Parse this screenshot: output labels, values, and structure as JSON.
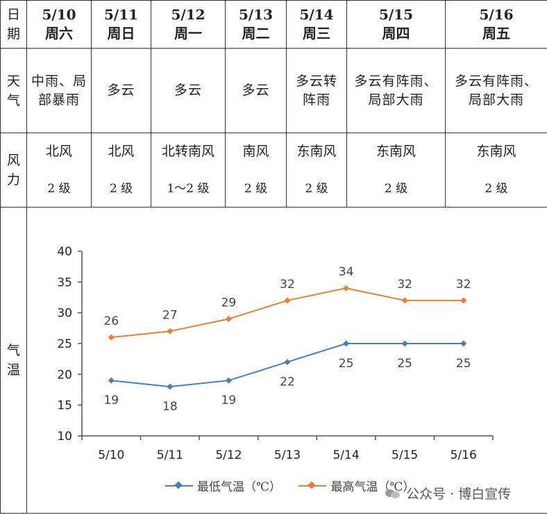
{
  "labels": {
    "date": [
      "日",
      "期"
    ],
    "weather": [
      "天",
      "气"
    ],
    "wind": [
      "风",
      "力"
    ],
    "temp": [
      "气",
      "温"
    ]
  },
  "days": [
    {
      "date": "5/10",
      "week": "周六",
      "weather": "中雨、局部暴雨",
      "wind": "北风",
      "level": "2 级"
    },
    {
      "date": "5/11",
      "week": "周日",
      "weather": "多云",
      "wind": "北风",
      "level": "2 级"
    },
    {
      "date": "5/12",
      "week": "周一",
      "weather": "多云",
      "wind": "北转南风",
      "level": "1～2 级"
    },
    {
      "date": "5/13",
      "week": "周二",
      "weather": "多云",
      "wind": "南风",
      "level": "2 级"
    },
    {
      "date": "5/14",
      "week": "周三",
      "weather": "多云转阵雨",
      "wind": "东南风",
      "level": "2 级"
    },
    {
      "date": "5/15",
      "week": "周四",
      "weather": "多云有阵雨、局部大雨",
      "wind": "东南风",
      "level": "2 级"
    },
    {
      "date": "5/16",
      "week": "周五",
      "weather": "多云有阵雨、局部大雨",
      "wind": "东南风",
      "level": "2 级"
    }
  ],
  "chart_data": {
    "type": "line",
    "categories": [
      "5/10",
      "5/11",
      "5/12",
      "5/13",
      "5/14",
      "5/15",
      "5/16"
    ],
    "series": [
      {
        "name": "最低气温（℃）",
        "values": [
          19,
          18,
          19,
          22,
          25,
          25,
          25
        ],
        "color": "#4a7ebb",
        "label_position": "below"
      },
      {
        "name": "最高气温（℃）",
        "values": [
          26,
          27,
          29,
          32,
          34,
          32,
          32
        ],
        "color": "#ed7d31",
        "label_position": "above"
      }
    ],
    "ylim": [
      10,
      40
    ],
    "yticks": [
      10,
      15,
      20,
      25,
      30,
      35,
      40
    ],
    "grid": false,
    "legend": "bottom"
  },
  "watermark": {
    "text": "公众号 · 博白宣传"
  }
}
